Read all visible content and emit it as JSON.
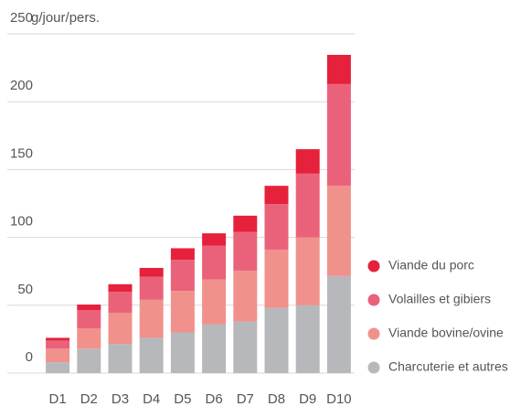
{
  "chart_data": {
    "type": "stacked_bar",
    "y_label": "g/jour/pers.",
    "categories": [
      "D1",
      "D2",
      "D3",
      "D4",
      "D5",
      "D6",
      "D7",
      "D8",
      "D9",
      "D10"
    ],
    "series": [
      {
        "name": "Viande du porc",
        "color": "#e5213c",
        "values": [
          2,
          4,
          5.5,
          6.5,
          8.5,
          9,
          12,
          13.5,
          18,
          21.5
        ]
      },
      {
        "name": "Volailles et gibiers",
        "color": "#ea627a",
        "values": [
          6,
          13.5,
          15.5,
          17,
          23,
          25,
          28.5,
          33.5,
          47,
          75
        ]
      },
      {
        "name": "Viande bovine/ovine",
        "color": "#f0918b",
        "values": [
          10,
          15,
          23,
          28,
          30.5,
          33,
          37.5,
          43,
          50,
          66.5
        ]
      },
      {
        "name": "Charcuterie et autres",
        "color": "#b7b8bc",
        "values": [
          8,
          18,
          21.5,
          26,
          30,
          36,
          38,
          48,
          50,
          71.5
        ]
      }
    ],
    "ylim": [
      0,
      250
    ],
    "yticks": [
      0,
      50,
      100,
      150,
      200,
      250
    ],
    "grid": true,
    "legend": "right"
  }
}
